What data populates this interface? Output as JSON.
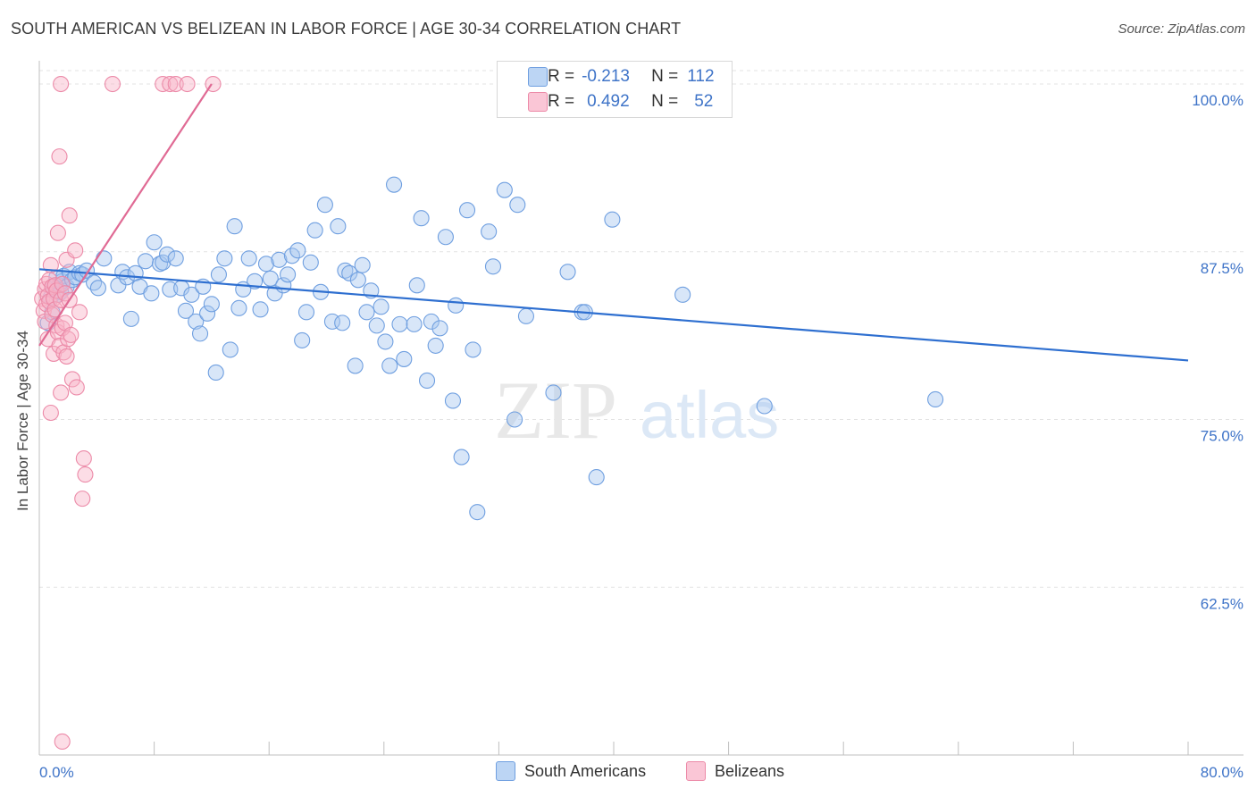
{
  "header": {
    "title": "SOUTH AMERICAN VS BELIZEAN IN LABOR FORCE | AGE 30-34 CORRELATION CHART",
    "source": "Source: ZipAtlas.com"
  },
  "watermark": {
    "zip": "ZIP",
    "atlas": "atlas"
  },
  "legend": {
    "rows": [
      {
        "r_label": "R =",
        "r_value": "-0.213",
        "n_label": "N =",
        "n_value": "112"
      },
      {
        "r_label": "R =",
        "r_value": "0.492",
        "n_label": "N =",
        "n_value": "52"
      }
    ]
  },
  "bottom_legend": {
    "items": [
      "South Americans",
      "Belizeans"
    ]
  },
  "colors": {
    "blue_fill": "#a9c8f0",
    "blue_stroke": "#6f9fe0",
    "blue_line": "#2e6fd0",
    "pink_fill": "#f8b4c8",
    "pink_stroke": "#ec8aa8",
    "pink_line": "#e06a94",
    "axis_text": "#3f74c8",
    "grid": "#e3e3e3"
  },
  "chart_data": {
    "type": "scatter",
    "title": "SOUTH AMERICAN VS BELIZEAN IN LABOR FORCE | AGE 30-34 CORRELATION CHART",
    "xlabel": "",
    "ylabel": "In Labor Force | Age 30-34",
    "xlim": [
      0,
      80
    ],
    "ylim": [
      50,
      101
    ],
    "x_tick_labels": [
      "0.0%",
      "80.0%"
    ],
    "y_ticks": [
      62.5,
      75.0,
      87.5,
      100.0
    ],
    "y_tick_labels": [
      "62.5%",
      "75.0%",
      "87.5%",
      "100.0%"
    ],
    "grid": true,
    "series": [
      {
        "name": "South Americans",
        "color": "#a9c8f0",
        "R": -0.213,
        "N": 112,
        "trendline": {
          "x": [
            0,
            80
          ],
          "y": [
            86.2,
            79.4
          ]
        },
        "points": [
          [
            0.6,
            82.2
          ],
          [
            0.8,
            84.1
          ],
          [
            0.9,
            83.0
          ],
          [
            1.0,
            84.8
          ],
          [
            1.2,
            85.6
          ],
          [
            1.3,
            84.3
          ],
          [
            1.4,
            85.0
          ],
          [
            1.5,
            84.5
          ],
          [
            1.6,
            85.3
          ],
          [
            1.7,
            85.7
          ],
          [
            1.9,
            84.9
          ],
          [
            2.1,
            86.0
          ],
          [
            2.3,
            85.4
          ],
          [
            2.5,
            85.6
          ],
          [
            2.8,
            85.9
          ],
          [
            3.0,
            85.8
          ],
          [
            3.3,
            86.1
          ],
          [
            3.8,
            85.2
          ],
          [
            4.1,
            84.8
          ],
          [
            4.5,
            87.0
          ],
          [
            5.5,
            85.0
          ],
          [
            5.8,
            86.0
          ],
          [
            6.1,
            85.6
          ],
          [
            6.4,
            82.5
          ],
          [
            6.7,
            85.9
          ],
          [
            7.0,
            84.9
          ],
          [
            7.4,
            86.8
          ],
          [
            7.8,
            84.4
          ],
          [
            8.0,
            88.2
          ],
          [
            8.4,
            86.6
          ],
          [
            8.6,
            86.7
          ],
          [
            8.9,
            87.3
          ],
          [
            9.1,
            84.7
          ],
          [
            9.5,
            87.0
          ],
          [
            9.9,
            84.8
          ],
          [
            10.2,
            83.1
          ],
          [
            10.6,
            84.3
          ],
          [
            10.9,
            82.3
          ],
          [
            11.2,
            81.4
          ],
          [
            11.4,
            84.9
          ],
          [
            11.7,
            82.9
          ],
          [
            12.0,
            83.6
          ],
          [
            12.3,
            78.5
          ],
          [
            12.5,
            85.8
          ],
          [
            12.9,
            87.0
          ],
          [
            13.3,
            80.2
          ],
          [
            13.6,
            89.4
          ],
          [
            13.9,
            83.3
          ],
          [
            14.2,
            84.7
          ],
          [
            14.6,
            87.0
          ],
          [
            15.0,
            85.3
          ],
          [
            15.4,
            83.2
          ],
          [
            15.8,
            86.6
          ],
          [
            16.1,
            85.5
          ],
          [
            16.4,
            84.4
          ],
          [
            16.7,
            86.9
          ],
          [
            17.0,
            85.0
          ],
          [
            17.3,
            85.8
          ],
          [
            17.6,
            87.2
          ],
          [
            18.0,
            87.6
          ],
          [
            18.3,
            80.9
          ],
          [
            18.6,
            83.0
          ],
          [
            18.9,
            86.7
          ],
          [
            19.2,
            89.1
          ],
          [
            19.6,
            84.5
          ],
          [
            19.9,
            91.0
          ],
          [
            20.4,
            82.3
          ],
          [
            20.8,
            89.4
          ],
          [
            21.1,
            82.2
          ],
          [
            21.3,
            86.1
          ],
          [
            21.6,
            85.9
          ],
          [
            22.0,
            79.0
          ],
          [
            22.2,
            85.4
          ],
          [
            22.5,
            86.5
          ],
          [
            22.8,
            83.0
          ],
          [
            23.1,
            84.6
          ],
          [
            23.5,
            82.0
          ],
          [
            23.8,
            83.4
          ],
          [
            24.1,
            80.8
          ],
          [
            24.4,
            79.0
          ],
          [
            24.7,
            92.5
          ],
          [
            25.1,
            82.1
          ],
          [
            25.4,
            79.5
          ],
          [
            26.1,
            82.1
          ],
          [
            26.3,
            85.0
          ],
          [
            26.6,
            90.0
          ],
          [
            27.0,
            77.9
          ],
          [
            27.3,
            82.3
          ],
          [
            27.6,
            80.5
          ],
          [
            27.9,
            81.8
          ],
          [
            28.3,
            88.6
          ],
          [
            28.8,
            76.4
          ],
          [
            29.0,
            83.5
          ],
          [
            29.4,
            72.2
          ],
          [
            29.8,
            90.6
          ],
          [
            30.2,
            80.2
          ],
          [
            30.5,
            68.1
          ],
          [
            31.3,
            89.0
          ],
          [
            31.6,
            86.4
          ],
          [
            32.4,
            92.1
          ],
          [
            33.1,
            75.0
          ],
          [
            33.9,
            82.7
          ],
          [
            35.8,
            77.0
          ],
          [
            36.8,
            86.0
          ],
          [
            37.8,
            83.0
          ],
          [
            38.0,
            83.0
          ],
          [
            38.8,
            70.7
          ],
          [
            39.9,
            89.9
          ],
          [
            44.8,
            84.3
          ],
          [
            50.5,
            76.0
          ],
          [
            62.4,
            76.5
          ],
          [
            33.3,
            91.0
          ]
        ]
      },
      {
        "name": "Belizeans",
        "color": "#f8b4c8",
        "R": 0.492,
        "N": 52,
        "trendline": {
          "x": [
            0,
            12
          ],
          "y": [
            80.5,
            100.0
          ]
        },
        "points": [
          [
            0.2,
            84.0
          ],
          [
            0.3,
            83.1
          ],
          [
            0.4,
            84.7
          ],
          [
            0.4,
            82.3
          ],
          [
            0.5,
            85.1
          ],
          [
            0.5,
            83.6
          ],
          [
            0.6,
            84.2
          ],
          [
            0.6,
            81.0
          ],
          [
            0.7,
            85.4
          ],
          [
            0.7,
            83.8
          ],
          [
            0.8,
            86.5
          ],
          [
            0.8,
            75.5
          ],
          [
            0.9,
            84.9
          ],
          [
            0.9,
            82.8
          ],
          [
            1.0,
            84.0
          ],
          [
            1.0,
            79.9
          ],
          [
            1.1,
            83.2
          ],
          [
            1.1,
            85.0
          ],
          [
            1.2,
            84.6
          ],
          [
            1.2,
            82.0
          ],
          [
            1.3,
            88.9
          ],
          [
            1.3,
            81.5
          ],
          [
            1.4,
            94.6
          ],
          [
            1.4,
            80.5
          ],
          [
            1.5,
            83.9
          ],
          [
            1.5,
            77.0
          ],
          [
            1.6,
            85.1
          ],
          [
            1.6,
            81.8
          ],
          [
            1.7,
            80.0
          ],
          [
            1.8,
            82.2
          ],
          [
            1.8,
            84.4
          ],
          [
            1.9,
            86.9
          ],
          [
            1.9,
            79.7
          ],
          [
            2.0,
            81.0
          ],
          [
            2.1,
            90.2
          ],
          [
            2.1,
            83.9
          ],
          [
            2.2,
            81.3
          ],
          [
            2.3,
            78.0
          ],
          [
            2.5,
            87.6
          ],
          [
            2.6,
            77.4
          ],
          [
            2.8,
            83.0
          ],
          [
            3.1,
            72.1
          ],
          [
            3.2,
            70.9
          ],
          [
            3.0,
            69.1
          ],
          [
            1.6,
            51.0
          ],
          [
            1.5,
            100.0
          ],
          [
            5.1,
            100.0
          ],
          [
            8.6,
            100.0
          ],
          [
            9.1,
            100.0
          ],
          [
            9.5,
            100.0
          ],
          [
            10.3,
            100.0
          ],
          [
            12.1,
            100.0
          ]
        ]
      }
    ]
  }
}
